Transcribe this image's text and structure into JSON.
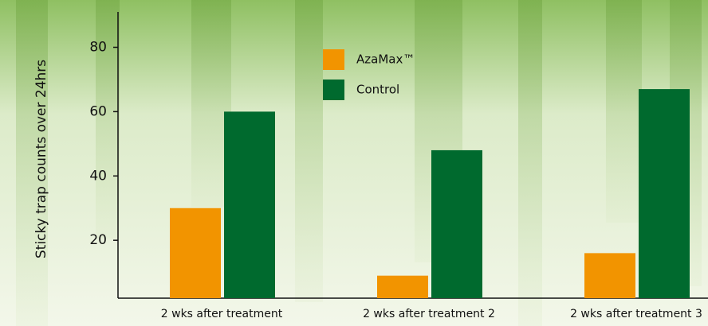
{
  "chart_data": {
    "type": "bar",
    "y_label": "Sticky trap counts over 24hrs",
    "categories": [
      "2 wks after treatment",
      "2 wks after treatment 2",
      "2 wks after treatment 3"
    ],
    "series": [
      {
        "name": "AzaMax™",
        "color": "#f29400",
        "values": [
          30,
          9,
          16
        ]
      },
      {
        "name": "Control",
        "color": "#006a2e",
        "values": [
          60,
          48,
          67
        ]
      }
    ],
    "ylim": [
      2,
      91
    ],
    "yticks": [
      20,
      40,
      60,
      80
    ],
    "grid": false
  }
}
